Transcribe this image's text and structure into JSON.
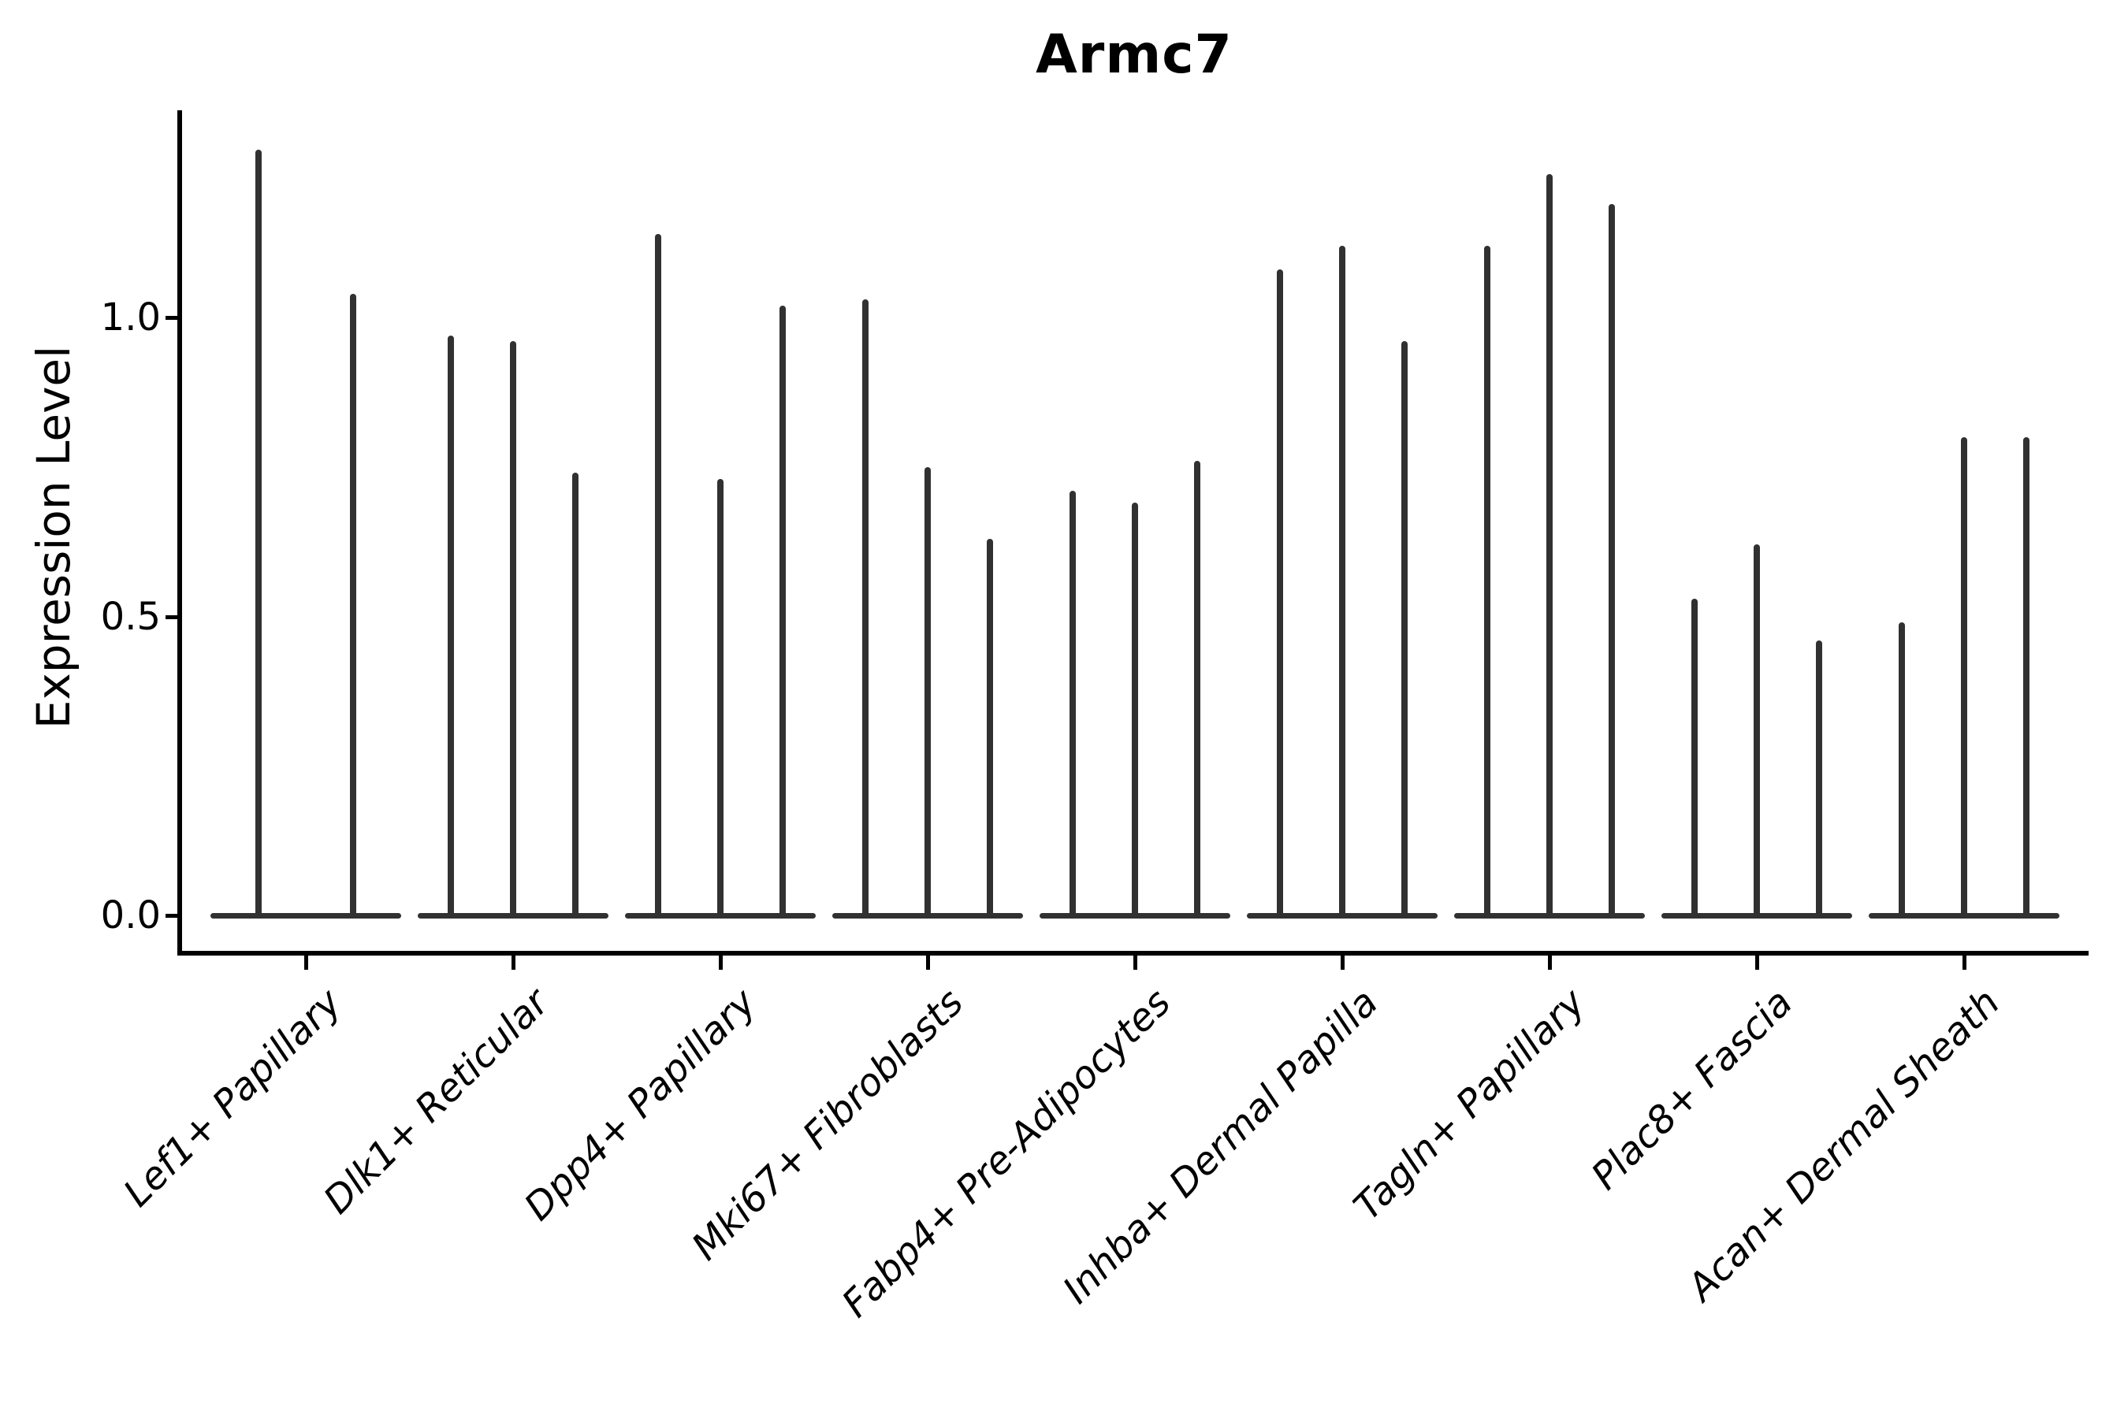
{
  "figure": {
    "background_color": "#ffffff",
    "axis_color": "#000000",
    "violin_color": "#313131"
  },
  "chart_data": {
    "type": "violin",
    "title": "Armc7",
    "xlabel": "",
    "ylabel": "Expression Level",
    "yticks": [
      0.0,
      0.5,
      1.0
    ],
    "ytick_labels": [
      "0.0",
      "0.5",
      "1.0"
    ],
    "ylim": [
      -0.07,
      1.35
    ],
    "grid": false,
    "legend": null,
    "xtick_label_rotation_deg": 45,
    "xtick_label_style": "italic",
    "violin_shape_note": "Each violin is a thin vertical spike from 0 up to its peak value with a wide flat base at expression level 0",
    "categories": [
      "Lef1+ Papillary",
      "Dlk1+ Reticular",
      "Dpp4+ Papillary",
      "Mki67+ Fibroblasts",
      "Fabp4+ Pre-Adipocytes",
      "Inhba+ Dermal Papilla",
      "Tagln+ Papillary",
      "Plac8+ Fascia",
      "Acan+ Dermal Sheath"
    ],
    "series": [
      {
        "category": "Lef1+ Papillary",
        "violin_peaks": [
          1.28,
          1.04
        ]
      },
      {
        "category": "Dlk1+ Reticular",
        "violin_peaks": [
          0.97,
          0.96,
          0.74
        ]
      },
      {
        "category": "Dpp4+ Papillary",
        "violin_peaks": [
          1.14,
          0.73,
          1.02
        ]
      },
      {
        "category": "Mki67+ Fibroblasts",
        "violin_peaks": [
          1.03,
          0.75,
          0.63
        ]
      },
      {
        "category": "Fabp4+ Pre-Adipocytes",
        "violin_peaks": [
          0.71,
          0.69,
          0.76
        ]
      },
      {
        "category": "Inhba+ Dermal Papilla",
        "violin_peaks": [
          1.08,
          1.12,
          0.96
        ]
      },
      {
        "category": "Tagln+ Papillary",
        "violin_peaks": [
          1.12,
          1.24,
          1.19
        ]
      },
      {
        "category": "Plac8+ Fascia",
        "violin_peaks": [
          0.53,
          0.62,
          0.46
        ]
      },
      {
        "category": "Acan+ Dermal Sheath",
        "violin_peaks": [
          0.49,
          0.8,
          0.8
        ]
      }
    ]
  }
}
